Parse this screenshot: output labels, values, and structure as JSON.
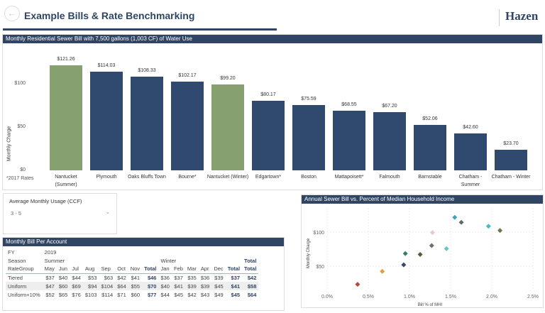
{
  "header": {
    "title": "Example Bills & Rate Benchmarking",
    "logo": "Hazen",
    "back_icon": "back-arrow-icon"
  },
  "bar_chart": {
    "title": "Monthly Residential Sewer Bill with 7,500 gallons (1,003 CF) of Water Use",
    "note": "*2017 Rates"
  },
  "slicer": {
    "title": "Average Monthly Usage (CCF)",
    "value": "3 - 5"
  },
  "table": {
    "title": "Monthly Bill Per Account",
    "fy_label": "FY",
    "fy": "2019",
    "season_label": "Season",
    "summer": "Summer",
    "winter": "Winter",
    "total": "Total",
    "rategroup_label": "RateGroup",
    "summer_months": [
      "May",
      "Jun",
      "Jul",
      "Aug",
      "Sep",
      "Oct",
      "Nov",
      "Total"
    ],
    "winter_months": [
      "Jan",
      "Feb",
      "Mar",
      "Apr",
      "Dec",
      "Total"
    ],
    "rows": [
      {
        "name": "Tiered",
        "summer": [
          "$37",
          "$40",
          "$44",
          "$53",
          "$63",
          "$42",
          "$41",
          "$46"
        ],
        "winter": [
          "$36",
          "$37",
          "$35",
          "$36",
          "$39",
          "$37"
        ],
        "total": "$42"
      },
      {
        "name": "Uniform",
        "summer": [
          "$47",
          "$60",
          "$69",
          "$94",
          "$104",
          "$64",
          "$55",
          "$70"
        ],
        "winter": [
          "$40",
          "$41",
          "$39",
          "$39",
          "$45",
          "$41"
        ],
        "total": "$58"
      },
      {
        "name": "Uniform+10%",
        "summer": [
          "$52",
          "$65",
          "$76",
          "$103",
          "$114",
          "$71",
          "$60",
          "$77"
        ],
        "winter": [
          "$44",
          "$45",
          "$42",
          "$43",
          "$49",
          "$45"
        ],
        "total": "$64"
      }
    ]
  },
  "chart_data": [
    {
      "type": "bar",
      "title": "Monthly Residential Sewer Bill with 7,500 gallons (1,003 CF) of Water Use",
      "ylabel": "Monthly Charge",
      "ylim": [
        0,
        130
      ],
      "yticks": [
        "$0",
        "$50",
        "$100"
      ],
      "ytick_values": [
        0,
        50,
        100
      ],
      "categories": [
        "Nantucket (Summer)",
        "Plymouth",
        "Oaks Bluffs Town",
        "Bourne*",
        "Nantucket (Winter)",
        "Edgartown*",
        "Boston",
        "Mattapoisett*",
        "Falmouth",
        "Barnstable",
        "Chatham - Summer",
        "Chatham - Winter"
      ],
      "values": [
        121.26,
        114.03,
        108.33,
        102.17,
        99.2,
        80.17,
        75.59,
        68.55,
        67.2,
        52.06,
        42.6,
        23.7
      ],
      "labels": [
        "$121.26",
        "$114.03",
        "$108.33",
        "$102.17",
        "$99.20",
        "$80.17",
        "$75.59",
        "$68.55",
        "$67.20",
        "$52.06",
        "$42.60",
        "$23.70"
      ],
      "colors": [
        "#87a070",
        "#2f4a6e",
        "#2f4a6e",
        "#2f4a6e",
        "#87a070",
        "#2f4a6e",
        "#2f4a6e",
        "#2f4a6e",
        "#2f4a6e",
        "#2f4a6e",
        "#2f4a6e",
        "#2f4a6e"
      ]
    },
    {
      "type": "scatter",
      "title": "Annual Sewer Bill vs. Percent of Median Household Income",
      "xlabel": "Bill % of MHI",
      "ylabel": "Monthly Charge",
      "xlim": [
        0,
        2.5
      ],
      "ylim": [
        15,
        135
      ],
      "xticks": [
        "0.0%",
        "0.5%",
        "1.0%",
        "1.5%",
        "2.0%",
        "2.5%"
      ],
      "xtick_values": [
        0,
        0.5,
        1,
        1.5,
        2,
        2.5
      ],
      "yticks": [
        "$50",
        "$100"
      ],
      "ytick_values": [
        50,
        100
      ],
      "points": [
        {
          "x": 1.55,
          "y": 121.26,
          "color": "#3aa6b9"
        },
        {
          "x": 1.63,
          "y": 114.03,
          "color": "#666666"
        },
        {
          "x": 1.96,
          "y": 108.33,
          "color": "#40c0c0"
        },
        {
          "x": 2.1,
          "y": 102.17,
          "color": "#6b7a4a"
        },
        {
          "x": 1.28,
          "y": 99.2,
          "color": "#e8c8d0"
        },
        {
          "x": 1.27,
          "y": 80.17,
          "color": "#707060"
        },
        {
          "x": 1.45,
          "y": 75.59,
          "color": "#6cc4c0"
        },
        {
          "x": 0.95,
          "y": 68.55,
          "color": "#3a7a6a"
        },
        {
          "x": 1.13,
          "y": 67.2,
          "color": "#5a5a3a"
        },
        {
          "x": 0.93,
          "y": 52.06,
          "color": "#3a4a6e"
        },
        {
          "x": 0.67,
          "y": 42.6,
          "color": "#e0a040"
        },
        {
          "x": 0.37,
          "y": 23.7,
          "color": "#b04a40"
        }
      ]
    }
  ]
}
